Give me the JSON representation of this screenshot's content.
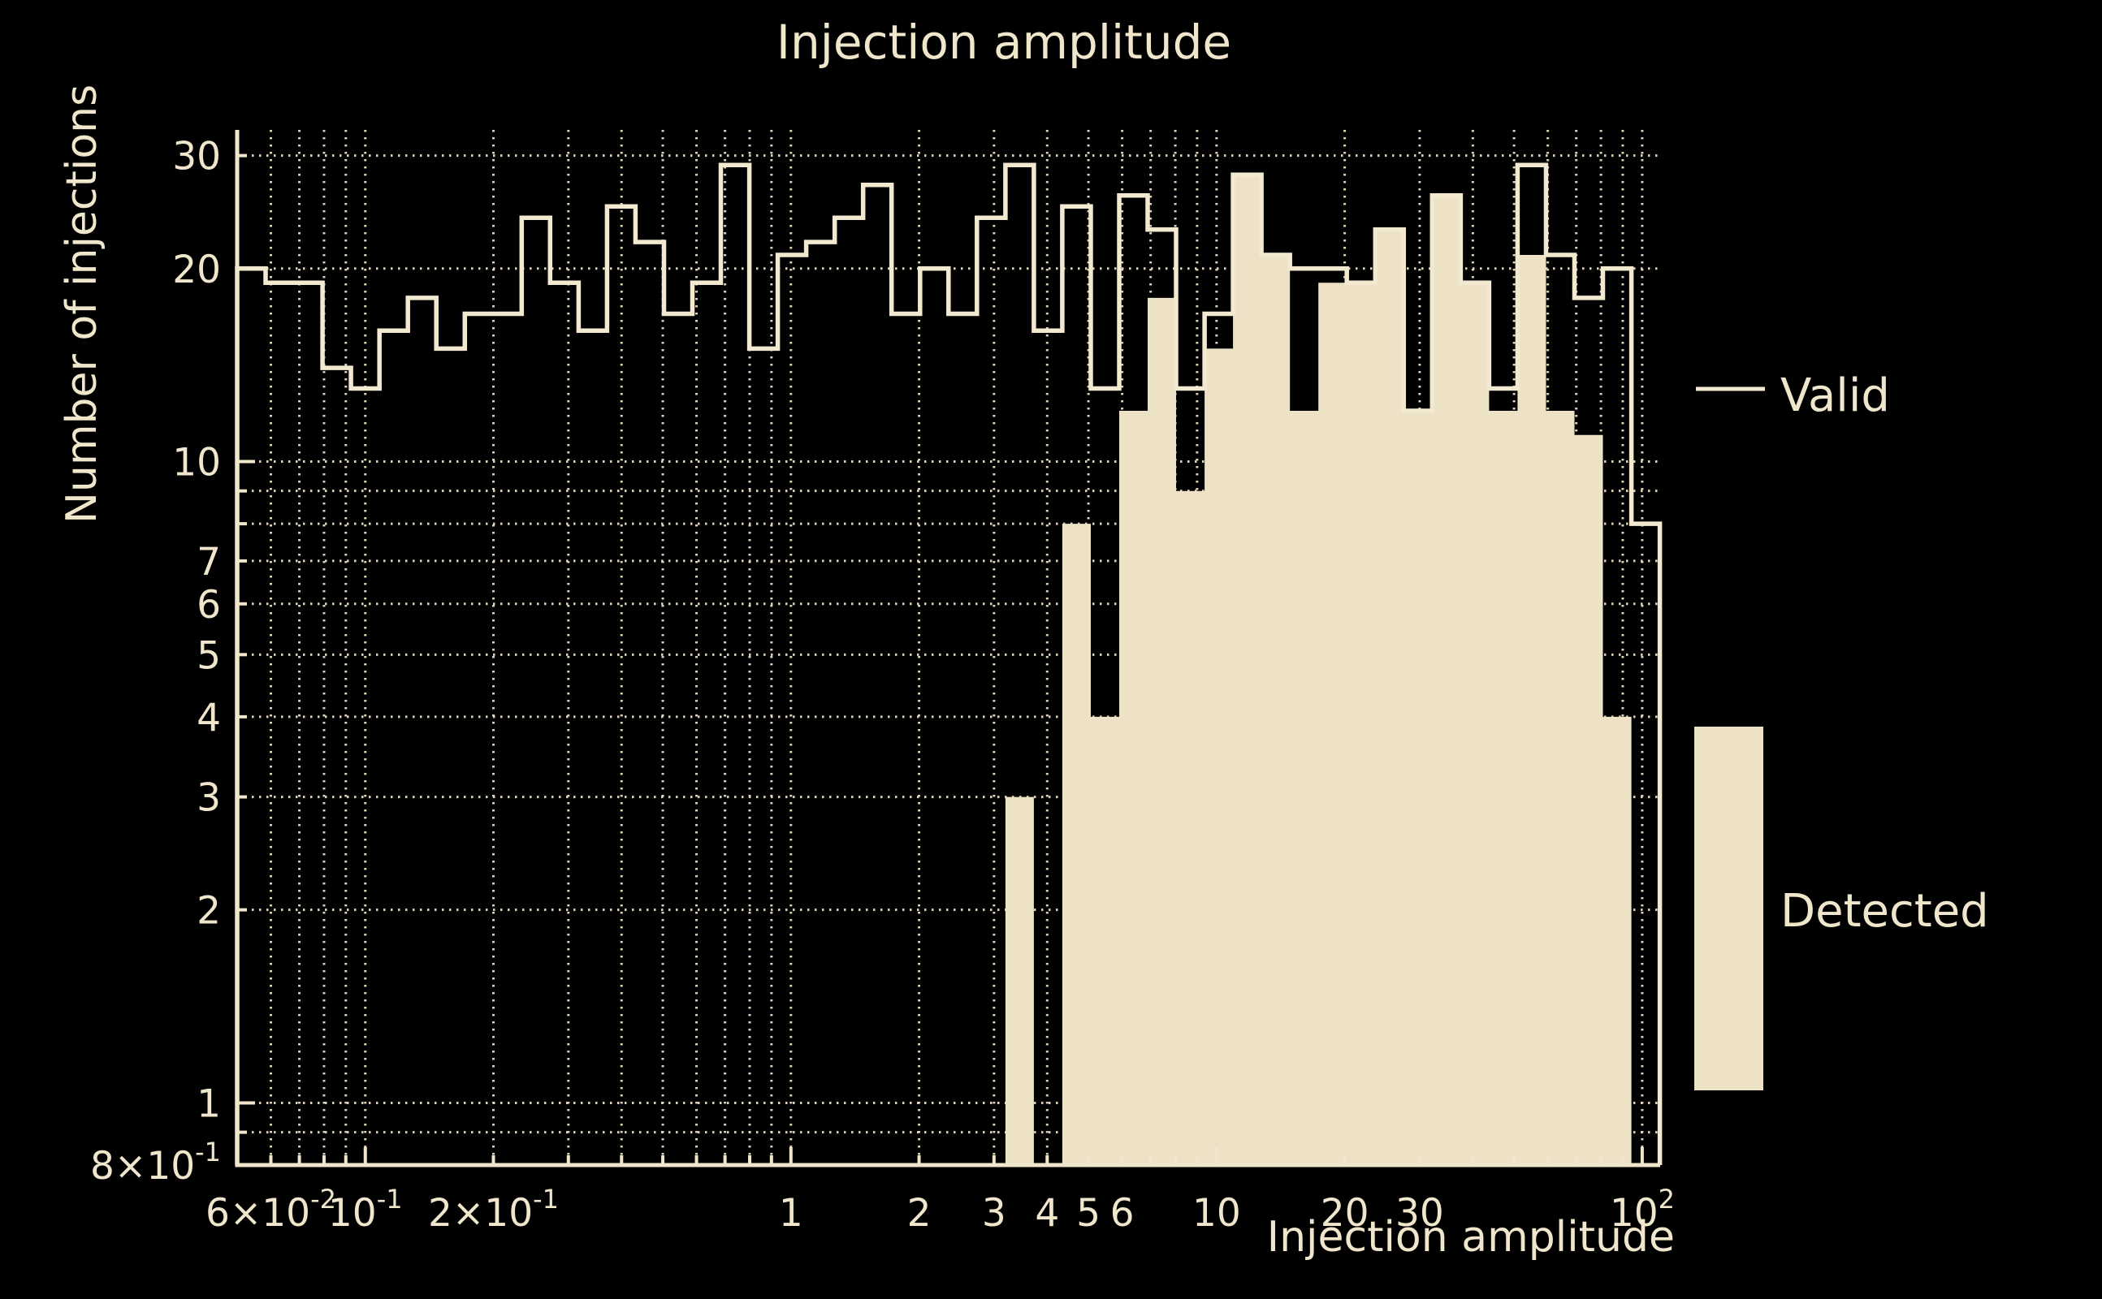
{
  "title": "Injection amplitude",
  "colors": {
    "background": "#000000",
    "text": "#F0E6CC",
    "step_line": "#F2E9D0",
    "fill": "#EDE2C6",
    "grid": "#E8DDBF",
    "axis": "#F0E6CC"
  },
  "chart_data": {
    "type": "bar",
    "subtype": "log-log step histogram with filled histogram overlay",
    "title": "Injection amplitude",
    "xlabel": "Injection amplitude",
    "ylabel": "Number of injections",
    "xscale": "log",
    "yscale": "log",
    "xlim": [
      0.05,
      110.2
    ],
    "ylim": [
      0.8,
      32.9
    ],
    "grid": true,
    "bins": {
      "start": 0.05,
      "stop": 110,
      "count": 50,
      "spacing": "geometric"
    },
    "series": [
      {
        "name": "Valid",
        "style": "step",
        "values": [
          20,
          19,
          19,
          14,
          13,
          16,
          18,
          15,
          17,
          17,
          24,
          19,
          16,
          25,
          22,
          17,
          19,
          29,
          15,
          21,
          22,
          24,
          27,
          17,
          20,
          17,
          24,
          29,
          16,
          25,
          13,
          26,
          23,
          13,
          17,
          28,
          21,
          20,
          20,
          19,
          23,
          12,
          26,
          19,
          13,
          29,
          21,
          18,
          20,
          8
        ]
      },
      {
        "name": "Detected",
        "style": "fill",
        "values": [
          0,
          0,
          0,
          0,
          0,
          0,
          0,
          0,
          0,
          0,
          0,
          0,
          0,
          0,
          0,
          0,
          0,
          0,
          0,
          0,
          0,
          0,
          0,
          0,
          0,
          0,
          0,
          3,
          0,
          8,
          4,
          12,
          18,
          9,
          15,
          28,
          21,
          12,
          19,
          19,
          23,
          12,
          26,
          19,
          12,
          21,
          12,
          11,
          4,
          0
        ]
      }
    ],
    "x_ticks_labeled": [
      {
        "v": 0.06,
        "label": "6×10^-2"
      },
      {
        "v": 0.1,
        "label": "10^-1"
      },
      {
        "v": 0.2,
        "label": "2×10^-1"
      },
      {
        "v": 1,
        "label": "1"
      },
      {
        "v": 2,
        "label": "2"
      },
      {
        "v": 3,
        "label": "3"
      },
      {
        "v": 4,
        "label": "4"
      },
      {
        "v": 5,
        "label": "5"
      },
      {
        "v": 6,
        "label": "6"
      },
      {
        "v": 10,
        "label": "10"
      },
      {
        "v": 20,
        "label": "20"
      },
      {
        "v": 30,
        "label": "30"
      },
      {
        "v": 100,
        "label": "10^2"
      }
    ],
    "y_ticks_labeled": [
      {
        "v": 30,
        "label": "30"
      },
      {
        "v": 20,
        "label": "20"
      },
      {
        "v": 10,
        "label": "10"
      },
      {
        "v": 7,
        "label": "7"
      },
      {
        "v": 6,
        "label": "6"
      },
      {
        "v": 5,
        "label": "5"
      },
      {
        "v": 4,
        "label": "4"
      },
      {
        "v": 3,
        "label": "3"
      },
      {
        "v": 2,
        "label": "2"
      },
      {
        "v": 1,
        "label": "1"
      },
      {
        "v": 0.8,
        "label": "8×10^-1"
      }
    ],
    "x_grid_values": [
      0.06,
      0.07,
      0.08,
      0.09,
      0.1,
      0.2,
      0.3,
      0.4,
      0.5,
      0.6,
      0.7,
      0.8,
      0.9,
      1,
      2,
      3,
      4,
      5,
      6,
      7,
      8,
      9,
      10,
      20,
      30,
      40,
      50,
      60,
      70,
      80,
      90,
      100
    ],
    "y_grid_values": [
      0.9,
      1,
      2,
      3,
      4,
      5,
      6,
      7,
      8,
      9,
      10,
      20,
      30
    ],
    "x_major_values": [
      0.1,
      1,
      10,
      100
    ],
    "y_major_values": [
      0.8,
      1,
      10
    ],
    "legend": [
      {
        "label": "Valid",
        "type": "line"
      },
      {
        "label": "Detected",
        "type": "box"
      }
    ]
  }
}
